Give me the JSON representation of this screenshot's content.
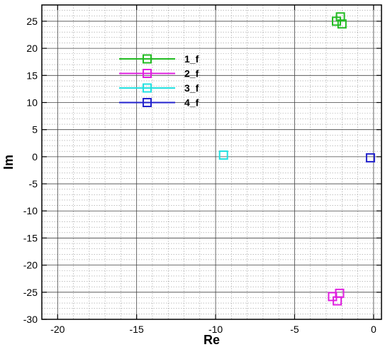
{
  "chart_data": {
    "type": "scatter",
    "xlabel": "Re",
    "ylabel": "Im",
    "xlim": [
      -21,
      0.5
    ],
    "ylim": [
      -30,
      28
    ],
    "x_ticks": [
      -20,
      -15,
      -10,
      -5,
      0
    ],
    "y_ticks": [
      -30,
      -25,
      -20,
      -15,
      -10,
      -5,
      0,
      5,
      10,
      15,
      20,
      25
    ],
    "grid": true,
    "legend_position": "upper-left",
    "series": [
      {
        "name": "1_f",
        "color": "#22bb22",
        "marker": "square",
        "points": [
          [
            -2.1,
            25.8
          ],
          [
            -2.35,
            25.0
          ],
          [
            -2.0,
            24.5
          ]
        ]
      },
      {
        "name": "2_f",
        "color": "#e020e0",
        "marker": "square",
        "points": [
          [
            -2.6,
            -25.8
          ],
          [
            -2.15,
            -25.2
          ],
          [
            -2.3,
            -26.6
          ]
        ]
      },
      {
        "name": "3_f",
        "color": "#22e0e0",
        "marker": "square",
        "points": [
          [
            -9.5,
            0.3
          ]
        ]
      },
      {
        "name": "4_f",
        "color": "#2222cc",
        "marker": "square",
        "points": [
          [
            -0.2,
            -0.2
          ]
        ]
      }
    ]
  }
}
